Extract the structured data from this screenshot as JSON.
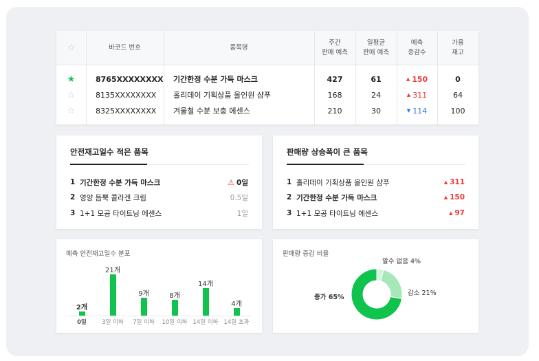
{
  "table": {
    "headers": {
      "barcode": "바코드 번호",
      "product": "품목명",
      "weekly_forecast": [
        "주간",
        "판매 예측"
      ],
      "daily_avg_forecast": [
        "일평균",
        "판매 예측"
      ],
      "forecast_change": [
        "예측",
        "증감수"
      ],
      "available_stock": [
        "가용",
        "재고"
      ]
    },
    "rows": [
      {
        "starred": true,
        "barcode": "8765XXXXXXXX",
        "product": "기간한정 수분 가득 마스크",
        "weekly": "427",
        "daily": "61",
        "change": "150",
        "change_dir": "up",
        "stock": "0",
        "bold": true
      },
      {
        "starred": false,
        "barcode": "8135XXXXXXXX",
        "product": "홀리데이 기획상품 올인원 샴푸",
        "weekly": "168",
        "daily": "24",
        "change": "311",
        "change_dir": "up",
        "stock": "64",
        "bold": false
      },
      {
        "starred": false,
        "barcode": "8325XXXXXXXX",
        "product": "겨울철 수분 보충 에센스",
        "weekly": "210",
        "daily": "30",
        "change": "114",
        "change_dir": "down",
        "stock": "100",
        "bold": false
      }
    ]
  },
  "low_stock_panel": {
    "title": "안전재고일수 적은 품목",
    "items": [
      {
        "rank": "1",
        "name": "기간한정 수분 가득 마스크",
        "value": "0일",
        "warning": true
      },
      {
        "rank": "2",
        "name": "영양 듬뿍 콜라겐 크림",
        "value": "0.5일",
        "warning": false
      },
      {
        "rank": "3",
        "name": "1+1 모공 타이트닝 에센스",
        "value": "1일",
        "warning": false
      }
    ]
  },
  "sales_rise_panel": {
    "title": "판매량 상승폭이 큰 품목",
    "items": [
      {
        "rank": "1",
        "name": "홀리데이 기획상품 올인원 샴푸",
        "value": "311"
      },
      {
        "rank": "2",
        "name": "기간한정 수분 가득 마스크",
        "value": "150"
      },
      {
        "rank": "3",
        "name": "1+1 모공 타이트닝 에센스",
        "value": "97"
      }
    ]
  },
  "colors": {
    "accent": "#0fc34c",
    "up": "#ee3a3a",
    "down": "#2e78d6",
    "donut_light": "#a6e8b8",
    "donut_pale": "#d3f3dc"
  },
  "chart_data": [
    {
      "type": "bar",
      "title": "예측 안전재고일수 분포",
      "categories": [
        "0일",
        "3일 이하",
        "7일 이하",
        "10일 이하",
        "14일 이하",
        "14일 초과"
      ],
      "values": [
        2,
        21,
        9,
        8,
        14,
        4
      ],
      "data_labels": [
        "2개",
        "21개",
        "9개",
        "8개",
        "14개",
        "4개"
      ],
      "ylim": [
        0,
        21
      ]
    },
    {
      "type": "pie",
      "title": "판매량 증감 비율",
      "categories": [
        "증가",
        "감소",
        "알수 없음"
      ],
      "values": [
        65,
        21,
        4
      ],
      "data_labels": [
        "증가 65%",
        "감소 21%",
        "알수 없음 4%"
      ]
    }
  ]
}
